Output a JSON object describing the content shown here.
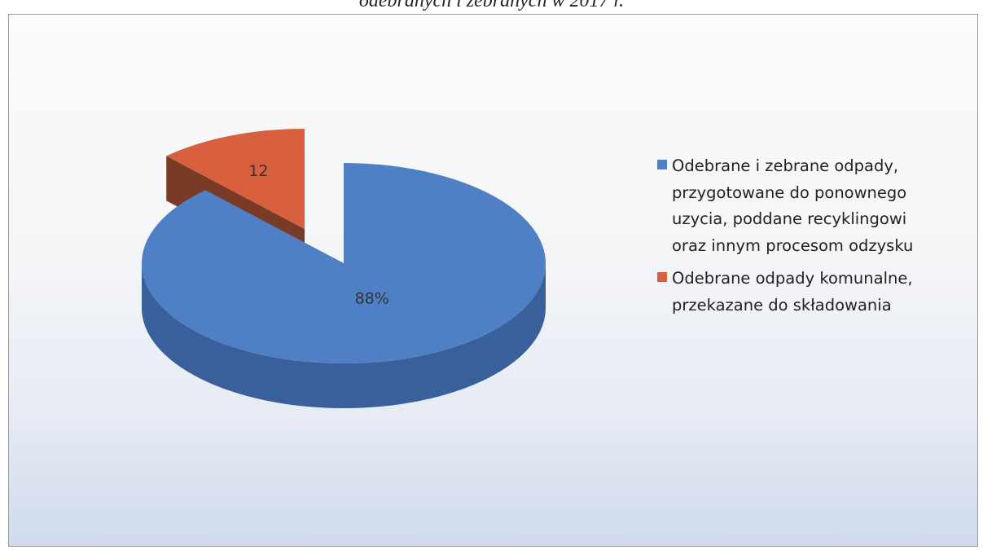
{
  "caption": "odebranych i zebranych w 2017 r.",
  "chart_data": {
    "type": "pie",
    "categories": [
      "Odebrane i zebrane odpady, przygotowane do ponownego uzycia, poddane recyklingowi oraz innym procesom odzysku",
      "Odebrane odpady komunalne, przekazane do składowania"
    ],
    "values": [
      88,
      12
    ],
    "data_labels": [
      "88%",
      "12"
    ],
    "colors": [
      "#4f7fc4",
      "#d9603e"
    ],
    "side_colors": [
      "#39609b",
      "#7a3b26"
    ],
    "legend_position": "right",
    "style": "3d-exploded"
  }
}
